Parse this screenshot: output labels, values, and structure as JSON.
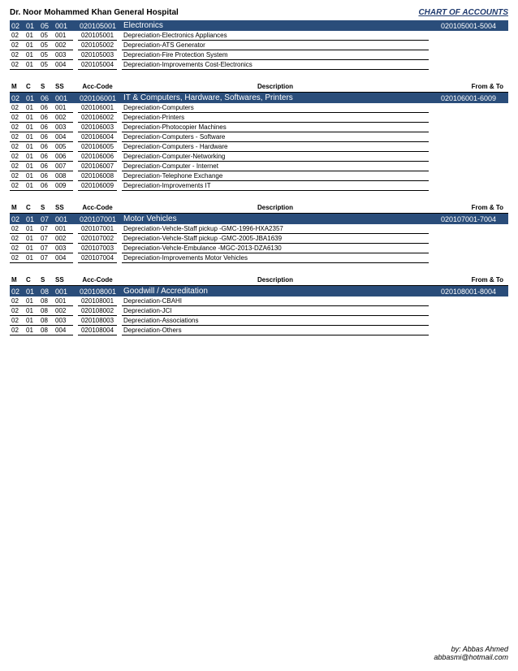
{
  "header": {
    "title": "Dr. Noor Mohammed Khan General Hospital",
    "chart_link": "CHART OF ACCOUNTS"
  },
  "columns": {
    "m": "M",
    "c": "C",
    "s": "S",
    "ss": "SS",
    "acc": "Acc-Code",
    "desc": "Description",
    "ft": "From & To"
  },
  "sections": [
    {
      "show_col_head": false,
      "header": {
        "m": "02",
        "c": "01",
        "s": "05",
        "ss": "001",
        "acc": "020105001",
        "title": "Electronics",
        "range": "020105001-5004"
      },
      "rows": [
        {
          "m": "02",
          "c": "01",
          "s": "05",
          "ss": "001",
          "acc": "020105001",
          "desc": "Depreciation-Electronics Appliances"
        },
        {
          "m": "02",
          "c": "01",
          "s": "05",
          "ss": "002",
          "acc": "020105002",
          "desc": "Depreciation-ATS Generator"
        },
        {
          "m": "02",
          "c": "01",
          "s": "05",
          "ss": "003",
          "acc": "020105003",
          "desc": "Depreciation-Fire Protection System"
        },
        {
          "m": "02",
          "c": "01",
          "s": "05",
          "ss": "004",
          "acc": "020105004",
          "desc": "Depreciation-Improvements Cost-Electronics"
        }
      ]
    },
    {
      "show_col_head": true,
      "header": {
        "m": "02",
        "c": "01",
        "s": "06",
        "ss": "001",
        "acc": "020106001",
        "title": "IT & Computers, Hardware, Softwares, Printers",
        "range": "020106001-6009"
      },
      "rows": [
        {
          "m": "02",
          "c": "01",
          "s": "06",
          "ss": "001",
          "acc": "020106001",
          "desc": "Depreciation-Computers"
        },
        {
          "m": "02",
          "c": "01",
          "s": "06",
          "ss": "002",
          "acc": "020106002",
          "desc": "Depreciation-Printers"
        },
        {
          "m": "02",
          "c": "01",
          "s": "06",
          "ss": "003",
          "acc": "020106003",
          "desc": "Depreciation-Photocopier Machines"
        },
        {
          "m": "02",
          "c": "01",
          "s": "06",
          "ss": "004",
          "acc": "020106004",
          "desc": "Depreciation-Computers - Software"
        },
        {
          "m": "02",
          "c": "01",
          "s": "06",
          "ss": "005",
          "acc": "020106005",
          "desc": "Depreciation-Computers - Hardware"
        },
        {
          "m": "02",
          "c": "01",
          "s": "06",
          "ss": "006",
          "acc": "020106006",
          "desc": "Depreciation-Computer-Networking"
        },
        {
          "m": "02",
          "c": "01",
          "s": "06",
          "ss": "007",
          "acc": "020106007",
          "desc": "Depreciation-Computer - Internet"
        },
        {
          "m": "02",
          "c": "01",
          "s": "06",
          "ss": "008",
          "acc": "020106008",
          "desc": "Depreciation-Telephone Exchange"
        },
        {
          "m": "02",
          "c": "01",
          "s": "06",
          "ss": "009",
          "acc": "020106009",
          "desc": "Depreciation-Improvements IT"
        }
      ]
    },
    {
      "show_col_head": true,
      "header": {
        "m": "02",
        "c": "01",
        "s": "07",
        "ss": "001",
        "acc": "020107001",
        "title": "Motor Vehicles",
        "range": "020107001-7004"
      },
      "rows": [
        {
          "m": "02",
          "c": "01",
          "s": "07",
          "ss": "001",
          "acc": "020107001",
          "desc": "Depreciation-Vehcle-Staff pickup -GMC-1996-HXA2357"
        },
        {
          "m": "02",
          "c": "01",
          "s": "07",
          "ss": "002",
          "acc": "020107002",
          "desc": "Depreciation-Vehcle-Staff pickup -GMC-2005-JBA1639"
        },
        {
          "m": "02",
          "c": "01",
          "s": "07",
          "ss": "003",
          "acc": "020107003",
          "desc": "Depreciation-Vehcle-Embulance -MGC-2013-DZA6130"
        },
        {
          "m": "02",
          "c": "01",
          "s": "07",
          "ss": "004",
          "acc": "020107004",
          "desc": "Depreciation-Improvements Motor Vehicles"
        }
      ]
    },
    {
      "show_col_head": true,
      "header": {
        "m": "02",
        "c": "01",
        "s": "08",
        "ss": "001",
        "acc": "020108001",
        "title": "Goodwill / Accreditation",
        "range": "020108001-8004"
      },
      "rows": [
        {
          "m": "02",
          "c": "01",
          "s": "08",
          "ss": "001",
          "acc": "020108001",
          "desc": "Depreciation-CBAHI"
        },
        {
          "m": "02",
          "c": "01",
          "s": "08",
          "ss": "002",
          "acc": "020108002",
          "desc": "Depreciation-JCI"
        },
        {
          "m": "02",
          "c": "01",
          "s": "08",
          "ss": "003",
          "acc": "020108003",
          "desc": "Depreciation-Associations"
        },
        {
          "m": "02",
          "c": "01",
          "s": "08",
          "ss": "004",
          "acc": "020108004",
          "desc": "Depreciation-Others"
        }
      ]
    }
  ],
  "footer": {
    "by": "by: Abbas Ahmed",
    "email": "abbasmi@hotmail.com"
  },
  "style": {
    "header_bg": "#2a4d7a",
    "header_fg": "#ffffff",
    "text_color": "#000000",
    "link_color": "#1f3a6e"
  }
}
